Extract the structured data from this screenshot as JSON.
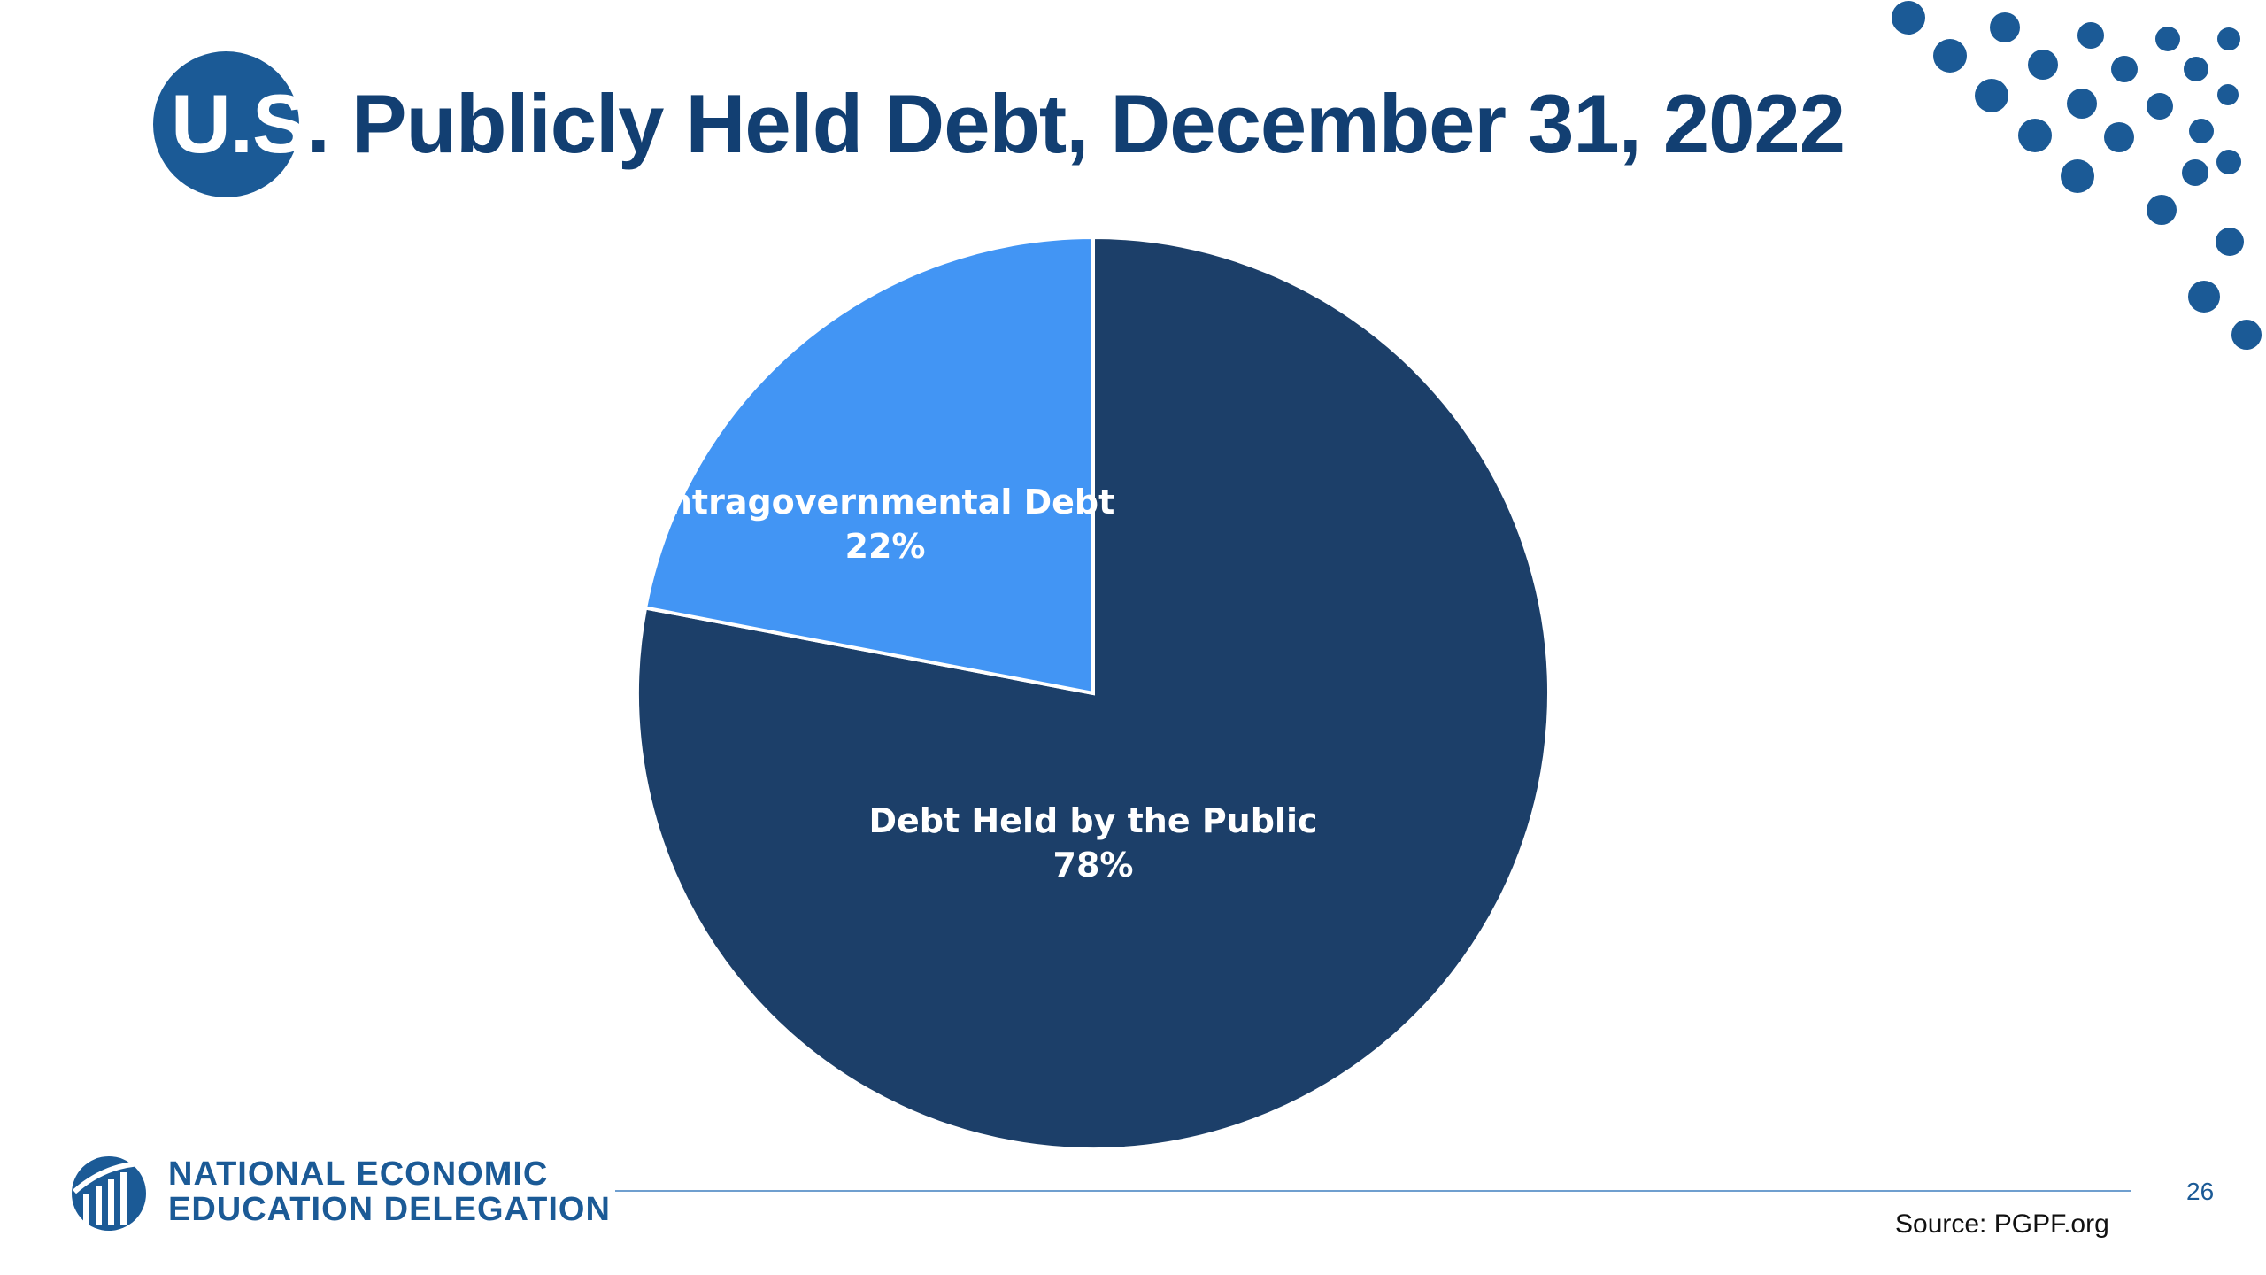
{
  "slide": {
    "title_prefix_u": "U.",
    "title_prefix_s": "S",
    "title_rest": ". Publicly Held Debt, December 31, 2022",
    "source": "Source: PGPF.org",
    "slide_number": "26"
  },
  "footer": {
    "org_line1": "NATIONAL ECONOMIC",
    "org_line2": "EDUCATION DELEGATION"
  },
  "colors": {
    "brand_blue": "#1b5a96",
    "title_navy": "#123f72",
    "public_debt": "#1c3f69",
    "intragovernmental_debt": "#4295f4",
    "rule": "#6f9fcf"
  },
  "chart_data": {
    "type": "pie",
    "title": "",
    "start": "12 o'clock",
    "direction": "clockwise",
    "slices": [
      {
        "label": "Debt Held by the Public",
        "percent_label": "78%",
        "value": 78
      },
      {
        "label": "Intragovernmental Debt",
        "percent_label": "22%",
        "value": 22
      }
    ]
  }
}
